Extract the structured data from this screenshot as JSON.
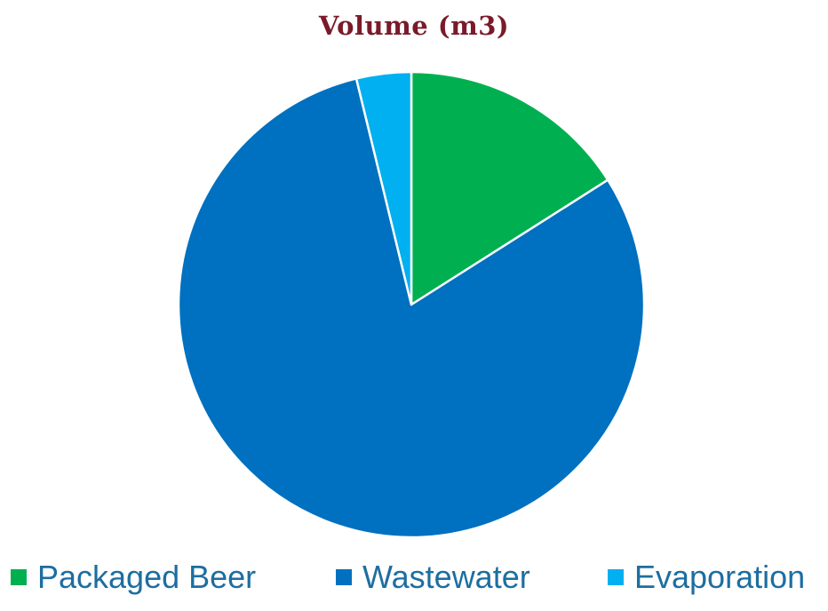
{
  "chart_data": {
    "type": "pie",
    "title": "Volume (m3)",
    "categories": [
      "Packaged Beer",
      "Wastewater",
      "Evaporation"
    ],
    "values": [
      16,
      80.2,
      3.8
    ],
    "colors": [
      "#00b050",
      "#0070c0",
      "#00b0f0"
    ],
    "legend_position": "bottom",
    "start_angle_deg": 0,
    "direction": "clockwise"
  }
}
